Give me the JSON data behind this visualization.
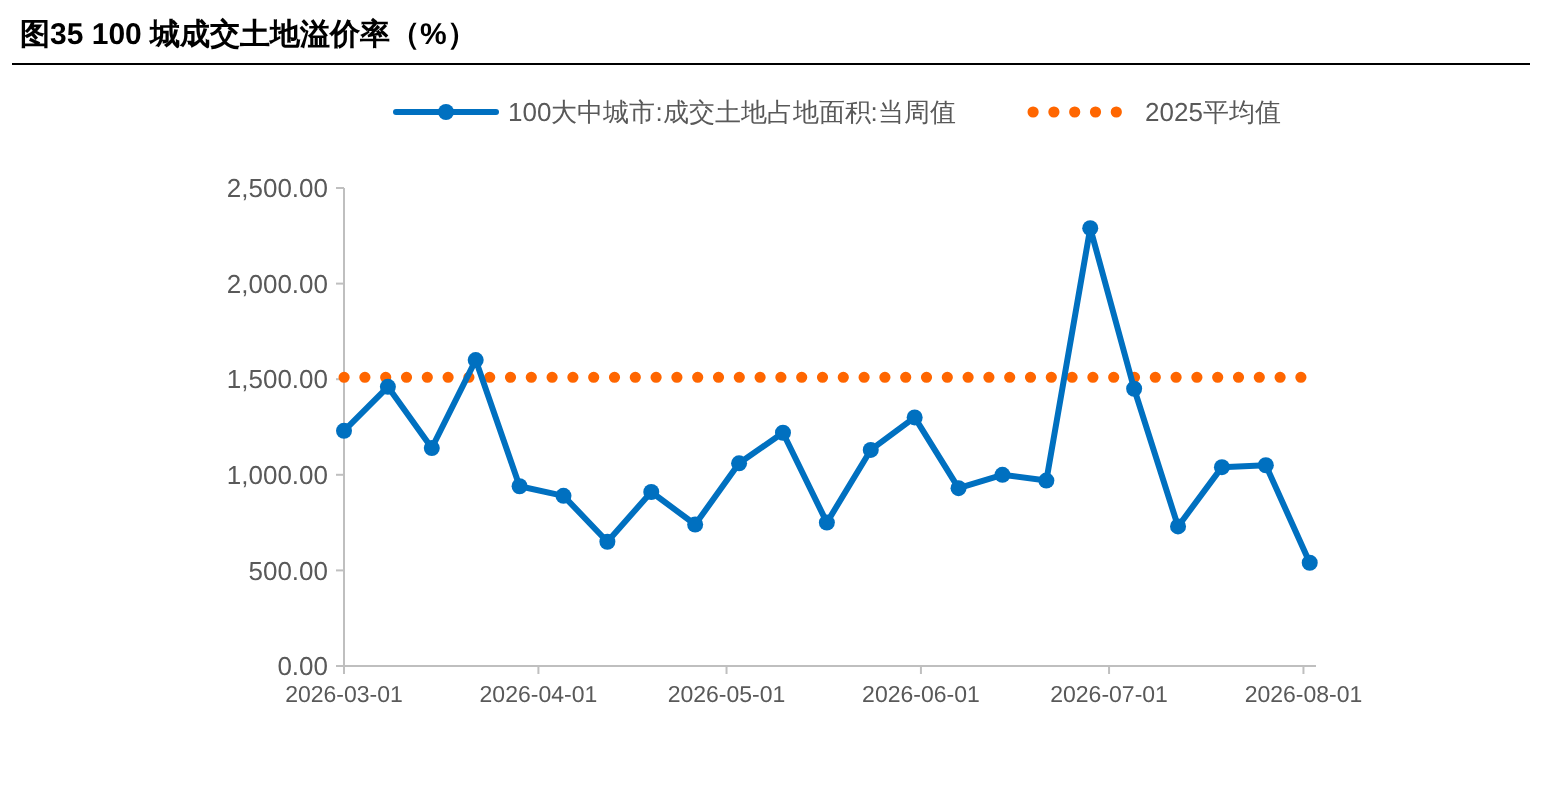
{
  "chart_data": {
    "type": "line",
    "title": "图35 100 城成交土地溢价率（%）",
    "x": [
      "2026-03-01",
      "2026-03-08",
      "2026-03-15",
      "2026-03-22",
      "2026-03-29",
      "2026-04-05",
      "2026-04-12",
      "2026-04-19",
      "2026-04-26",
      "2026-05-03",
      "2026-05-10",
      "2026-05-17",
      "2026-05-24",
      "2026-05-31",
      "2026-06-07",
      "2026-06-14",
      "2026-06-21",
      "2026-06-28",
      "2026-07-05",
      "2026-07-12",
      "2026-07-19",
      "2026-07-26",
      "2026-08-02"
    ],
    "series": [
      {
        "name": "100大中城市:成交土地占地面积:当周值",
        "color": "#0070c0",
        "values": [
          1230,
          1460,
          1140,
          1600,
          940,
          890,
          650,
          910,
          740,
          1060,
          1220,
          750,
          1130,
          1300,
          930,
          1000,
          970,
          2290,
          1450,
          730,
          1040,
          1050,
          540
        ]
      }
    ],
    "ref_lines": [
      {
        "axis": "y",
        "value": 1510,
        "label": "2025平均值",
        "color": "#ff6600",
        "line_style": "dotted"
      }
    ],
    "xlim": [
      "2026-03-01",
      "2026-08-03"
    ],
    "xticks": [
      {
        "value": "2026-03-01",
        "label": "2026-03-01"
      },
      {
        "value": "2026-04-01",
        "label": "2026-04-01"
      },
      {
        "value": "2026-05-01",
        "label": "2026-05-01"
      },
      {
        "value": "2026-06-01",
        "label": "2026-06-01"
      },
      {
        "value": "2026-07-01",
        "label": "2026-07-01"
      },
      {
        "value": "2026-08-01",
        "label": "2026-08-01"
      }
    ],
    "ylim": [
      0,
      2500
    ],
    "yticks": [
      {
        "value": 0,
        "label": "0.00"
      },
      {
        "value": 500,
        "label": "500.00"
      },
      {
        "value": 1000,
        "label": "1,000.00"
      },
      {
        "value": 1500,
        "label": "1,500.00"
      },
      {
        "value": 2000,
        "label": "2,000.00"
      },
      {
        "value": 2500,
        "label": "2,500.00"
      }
    ],
    "grid": false,
    "legend": "top",
    "marker": "circle",
    "line_style": "solid"
  }
}
